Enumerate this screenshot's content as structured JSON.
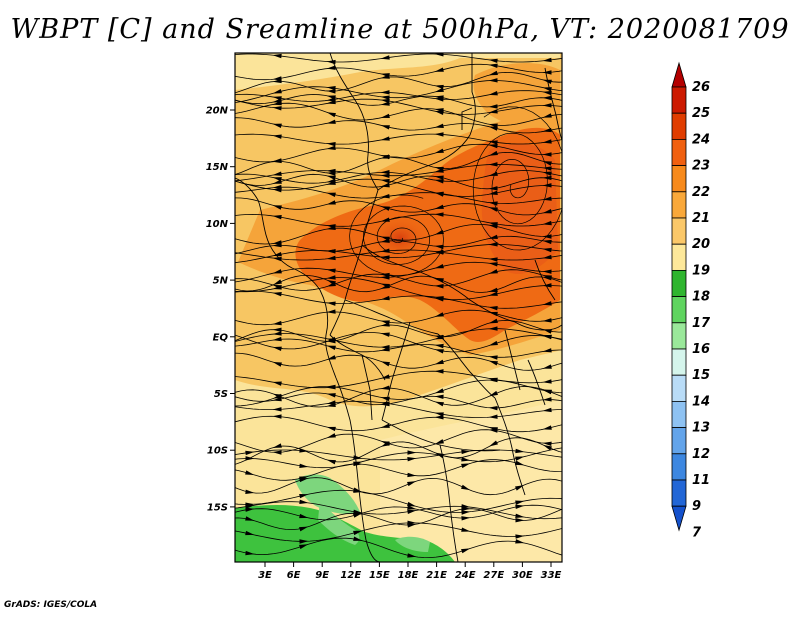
{
  "title": "WBPT [C] and Sreamline at 500hPa, VT: 2020081709",
  "footer": "GrADS: IGES/COLA",
  "lat_labels": [
    "20N",
    "15N",
    "10N",
    "5N",
    "EQ",
    "5S",
    "10S",
    "15S"
  ],
  "lon_labels": [
    "3E",
    "6E",
    "9E",
    "12E",
    "15E",
    "18E",
    "21E",
    "24E",
    "27E",
    "30E",
    "33E"
  ],
  "colorbar": {
    "labels": [
      "26",
      "25",
      "24",
      "23",
      "22",
      "21",
      "20",
      "19",
      "18",
      "17",
      "16",
      "15",
      "14",
      "13",
      "12",
      "11",
      "9",
      "7"
    ],
    "colors": [
      "#b30000",
      "#cc1a00",
      "#e03d00",
      "#f06010",
      "#f78a1c",
      "#f9a83a",
      "#fbc869",
      "#fde89a",
      "#2fb52f",
      "#5fd45f",
      "#9ae89a",
      "#d5f5ec",
      "#b9dcf7",
      "#8ec2f2",
      "#63a4ea",
      "#3d87e0",
      "#2266d6",
      "#1451cc"
    ]
  },
  "legend_colors": {
    "light": "#fbe49a",
    "yellow_orange": "#f7c663",
    "orange": "#f5a43a",
    "dark_orange": "#ef6a14",
    "red_orange": "#e5531a",
    "green": "#3ec23e",
    "light_green": "#7dd67d"
  }
}
